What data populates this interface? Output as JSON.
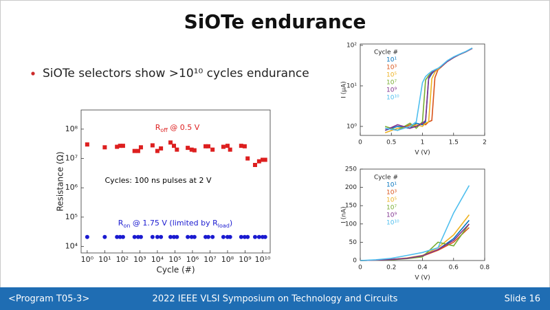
{
  "title": "SiOTe endurance",
  "bullet": "SiOTe selectors show >10¹⁰ cycles endurance",
  "footer": {
    "left": "<Program T05-3>",
    "center": "2022 IEEE VLSI Symposium on Technology and Circuits",
    "right": "Slide 16"
  },
  "chart_data": [
    {
      "type": "scatter",
      "xlabel": "Cycle (#)",
      "ylabel": "Resistance (Ω)",
      "xscale": "log",
      "yscale": "log",
      "xlim": [
        0.45,
        27000000000
      ],
      "ylim": [
        6000,
        450000000
      ],
      "xticks": [
        {
          "value": 1,
          "label": "10⁰"
        },
        {
          "value": 10,
          "label": "10¹"
        },
        {
          "value": 100,
          "label": "10²"
        },
        {
          "value": 1000,
          "label": "10³"
        },
        {
          "value": 10000,
          "label": "10⁴"
        },
        {
          "value": 100000,
          "label": "10⁵"
        },
        {
          "value": 1000000,
          "label": "10⁶"
        },
        {
          "value": 10000000,
          "label": "10⁷"
        },
        {
          "value": 100000000,
          "label": "10⁸"
        },
        {
          "value": 1000000000,
          "label": "10⁹"
        },
        {
          "value": 10000000000,
          "label": "10¹⁰"
        }
      ],
      "yticks": [
        {
          "value": 10000,
          "label": "10⁴"
        },
        {
          "value": 100000,
          "label": "10⁵"
        },
        {
          "value": 1000000,
          "label": "10⁶"
        },
        {
          "value": 10000000,
          "label": "10⁷"
        },
        {
          "value": 100000000,
          "label": "10⁸"
        }
      ],
      "x": [
        1,
        10,
        50,
        75,
        110,
        500,
        800,
        1150,
        5300,
        10000,
        16000,
        56000,
        88000,
        130000,
        540000,
        900000,
        1300000,
        5600000,
        8000000,
        14000000,
        58000000,
        100000000,
        140000000,
        600000000,
        950000000,
        1400000000,
        3700000000,
        6300000000,
        10000000000,
        14000000000
      ],
      "series": [
        {
          "marker": "square",
          "color": "#dd1f1f",
          "values": [
            30000000,
            24000000,
            25000000,
            27000000,
            27000000,
            18000000,
            18000000,
            24000000,
            28000000,
            18000000,
            22000000,
            35000000,
            27000000,
            20000000,
            23000000,
            20000000,
            19000000,
            26000000,
            26000000,
            20000000,
            25000000,
            27000000,
            20000000,
            27000000,
            26000000,
            10000000,
            6000000,
            8000000,
            9000000,
            9000000
          ]
        },
        {
          "marker": "circle",
          "color": "#1a1ad0",
          "values": [
            21000,
            21000,
            21000,
            21000,
            21000,
            21000,
            21000,
            21000,
            21000,
            21000,
            21000,
            21000,
            21000,
            21000,
            21000,
            21000,
            21000,
            21000,
            21000,
            21000,
            21000,
            21000,
            21000,
            21000,
            21000,
            21000,
            21000,
            21000,
            21000,
            21000
          ]
        }
      ],
      "annotations": [
        {
          "parts": [
            "R",
            "off",
            " @ 0.5 V"
          ],
          "color": "#dd1f1f"
        },
        {
          "parts": [
            "Cycles: 100 ns pulses at 2 V"
          ],
          "color": "#000000"
        },
        {
          "parts": [
            "R",
            "on",
            " @ 1.75 V (limited by R",
            "load",
            ")"
          ],
          "color": "#1a1ad0"
        }
      ]
    },
    {
      "type": "line",
      "xlabel": "V (V)",
      "ylabel": "I (μA)",
      "yscale": "log",
      "xlim": [
        0,
        2
      ],
      "ylim": [
        0.6,
        108
      ],
      "xticks": [
        0,
        0.5,
        1,
        1.5,
        2
      ],
      "yticks": [
        {
          "value": 1,
          "label": "10⁰"
        },
        {
          "value": 10,
          "label": "10¹"
        },
        {
          "value": 100,
          "label": "10²"
        }
      ],
      "legend_title": "Cycle #",
      "x": [
        0.4,
        0.6,
        0.8,
        0.9,
        1.0,
        1.05,
        1.1,
        1.15,
        1.2,
        1.25,
        1.3,
        1.4,
        1.5,
        1.6,
        1.7,
        1.8
      ],
      "series": [
        {
          "name": "10¹",
          "color": "#0072bd",
          "values": [
            0.8,
            1.0,
            0.9,
            1.2,
            1.1,
            1.3,
            15,
            20,
            24,
            27,
            30,
            40,
            50,
            60,
            70,
            85
          ]
        },
        {
          "name": "10³",
          "color": "#d95319",
          "values": [
            0.9,
            0.8,
            1.1,
            1.0,
            1.2,
            1.1,
            1.3,
            1.4,
            16,
            25,
            29,
            40,
            50,
            60,
            70,
            84
          ]
        },
        {
          "name": "10⁵",
          "color": "#edb120",
          "values": [
            0.7,
            0.9,
            1.0,
            1.1,
            1.0,
            1.2,
            1.3,
            15,
            22,
            26,
            30,
            40,
            50,
            60,
            70,
            85
          ]
        },
        {
          "name": "10⁷",
          "color": "#77ac30",
          "values": [
            1.0,
            0.8,
            1.2,
            0.9,
            1.3,
            14,
            18,
            22,
            25,
            27,
            30,
            40,
            50,
            60,
            70,
            85
          ]
        },
        {
          "name": "10⁹",
          "color": "#7e2f8e",
          "values": [
            0.8,
            1.1,
            0.9,
            1.0,
            1.2,
            1.4,
            16,
            21,
            24,
            27,
            30,
            40,
            50,
            60,
            70,
            84
          ]
        },
        {
          "name": "10¹⁰",
          "color": "#4dbeee",
          "values": [
            0.9,
            0.8,
            1.0,
            1.3,
            12,
            17,
            20,
            23,
            25,
            27,
            31,
            42,
            52,
            61,
            71,
            86
          ]
        }
      ]
    },
    {
      "type": "line",
      "xlabel": "V (V)",
      "ylabel": "I (nA)",
      "xlim": [
        0,
        0.8
      ],
      "ylim": [
        0,
        250
      ],
      "xticks": [
        0,
        0.2,
        0.4,
        0.6,
        0.8
      ],
      "yticks": [
        0,
        50,
        100,
        150,
        200,
        250
      ],
      "legend_title": "Cycle #",
      "x": [
        0,
        0.1,
        0.2,
        0.3,
        0.4,
        0.5,
        0.6,
        0.7
      ],
      "series": [
        {
          "name": "10¹",
          "color": "#0072bd",
          "values": [
            0,
            1,
            3,
            6,
            12,
            30,
            60,
            110
          ]
        },
        {
          "name": "10³",
          "color": "#d95319",
          "values": [
            0,
            1,
            3,
            6,
            12,
            28,
            50,
            90
          ]
        },
        {
          "name": "10⁵",
          "color": "#edb120",
          "values": [
            0,
            1,
            3,
            7,
            14,
            35,
            70,
            125
          ]
        },
        {
          "name": "10⁷",
          "color": "#77ac30",
          "values": [
            0,
            1,
            2,
            5,
            10,
            50,
            40,
            100
          ]
        },
        {
          "name": "10⁹",
          "color": "#7e2f8e",
          "values": [
            0,
            1,
            3,
            6,
            13,
            30,
            55,
            100
          ]
        },
        {
          "name": "10¹⁰",
          "color": "#4dbeee",
          "values": [
            0,
            2,
            6,
            14,
            22,
            35,
            130,
            205
          ]
        }
      ]
    }
  ]
}
